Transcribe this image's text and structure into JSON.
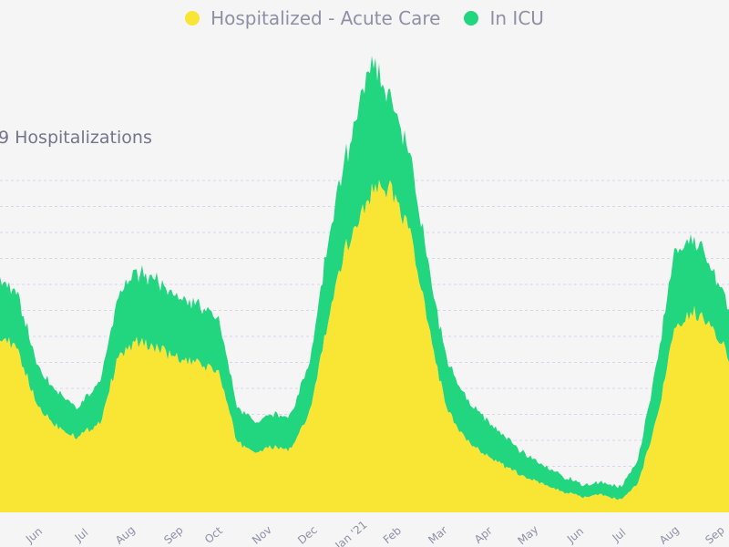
{
  "chart_data": {
    "type": "area",
    "title": "9 Hospitalizations",
    "legend": {
      "placement": "top-center",
      "items": [
        {
          "name": "Hospitalized - Acute Care",
          "color": "#f9e534"
        },
        {
          "name": "In ICU",
          "color": "#22d67f"
        }
      ]
    },
    "x_tick_labels": [
      "Jun",
      "Jul",
      "Aug",
      "Sep",
      "Oct",
      "Nov",
      "Dec",
      "Jan '21",
      "Feb",
      "Mar",
      "Apr",
      "May",
      "Jun",
      "Jul",
      "Aug",
      "Sep"
    ],
    "grid": true,
    "stacked": true,
    "series": [
      {
        "name": "Hospitalized - Acute Care",
        "color": "#f9e534",
        "points": [
          [
            0,
            355
          ],
          [
            20,
            320
          ],
          [
            40,
            215
          ],
          [
            60,
            175
          ],
          [
            85,
            150
          ],
          [
            110,
            180
          ],
          [
            130,
            310
          ],
          [
            150,
            340
          ],
          [
            160,
            335
          ],
          [
            170,
            330
          ],
          [
            190,
            310
          ],
          [
            205,
            300
          ],
          [
            220,
            295
          ],
          [
            240,
            280
          ],
          [
            260,
            140
          ],
          [
            280,
            120
          ],
          [
            300,
            130
          ],
          [
            320,
            125
          ],
          [
            340,
            200
          ],
          [
            360,
            380
          ],
          [
            380,
            530
          ],
          [
            395,
            590
          ],
          [
            408,
            640
          ],
          [
            420,
            650
          ],
          [
            430,
            640
          ],
          [
            450,
            560
          ],
          [
            470,
            370
          ],
          [
            490,
            205
          ],
          [
            510,
            145
          ],
          [
            530,
            120
          ],
          [
            560,
            85
          ],
          [
            590,
            60
          ],
          [
            620,
            40
          ],
          [
            640,
            30
          ],
          [
            660,
            35
          ],
          [
            680,
            25
          ],
          [
            700,
            55
          ],
          [
            720,
            180
          ],
          [
            740,
            360
          ],
          [
            760,
            400
          ],
          [
            780,
            380
          ],
          [
            800,
            310
          ]
        ]
      },
      {
        "name": "In ICU",
        "color": "#22d67f",
        "points": [
          [
            0,
            120
          ],
          [
            20,
            110
          ],
          [
            40,
            80
          ],
          [
            60,
            70
          ],
          [
            85,
            60
          ],
          [
            110,
            80
          ],
          [
            130,
            125
          ],
          [
            150,
            140
          ],
          [
            160,
            140
          ],
          [
            170,
            135
          ],
          [
            190,
            125
          ],
          [
            205,
            120
          ],
          [
            220,
            115
          ],
          [
            240,
            110
          ],
          [
            260,
            70
          ],
          [
            280,
            60
          ],
          [
            300,
            65
          ],
          [
            320,
            70
          ],
          [
            340,
            100
          ],
          [
            360,
            160
          ],
          [
            380,
            180
          ],
          [
            395,
            230
          ],
          [
            408,
            265
          ],
          [
            420,
            200
          ],
          [
            430,
            180
          ],
          [
            450,
            150
          ],
          [
            470,
            120
          ],
          [
            490,
            100
          ],
          [
            510,
            85
          ],
          [
            530,
            75
          ],
          [
            560,
            55
          ],
          [
            590,
            40
          ],
          [
            620,
            30
          ],
          [
            640,
            25
          ],
          [
            660,
            25
          ],
          [
            680,
            25
          ],
          [
            700,
            45
          ],
          [
            720,
            110
          ],
          [
            740,
            150
          ],
          [
            760,
            150
          ],
          [
            780,
            120
          ],
          [
            800,
            100
          ]
        ]
      }
    ]
  }
}
